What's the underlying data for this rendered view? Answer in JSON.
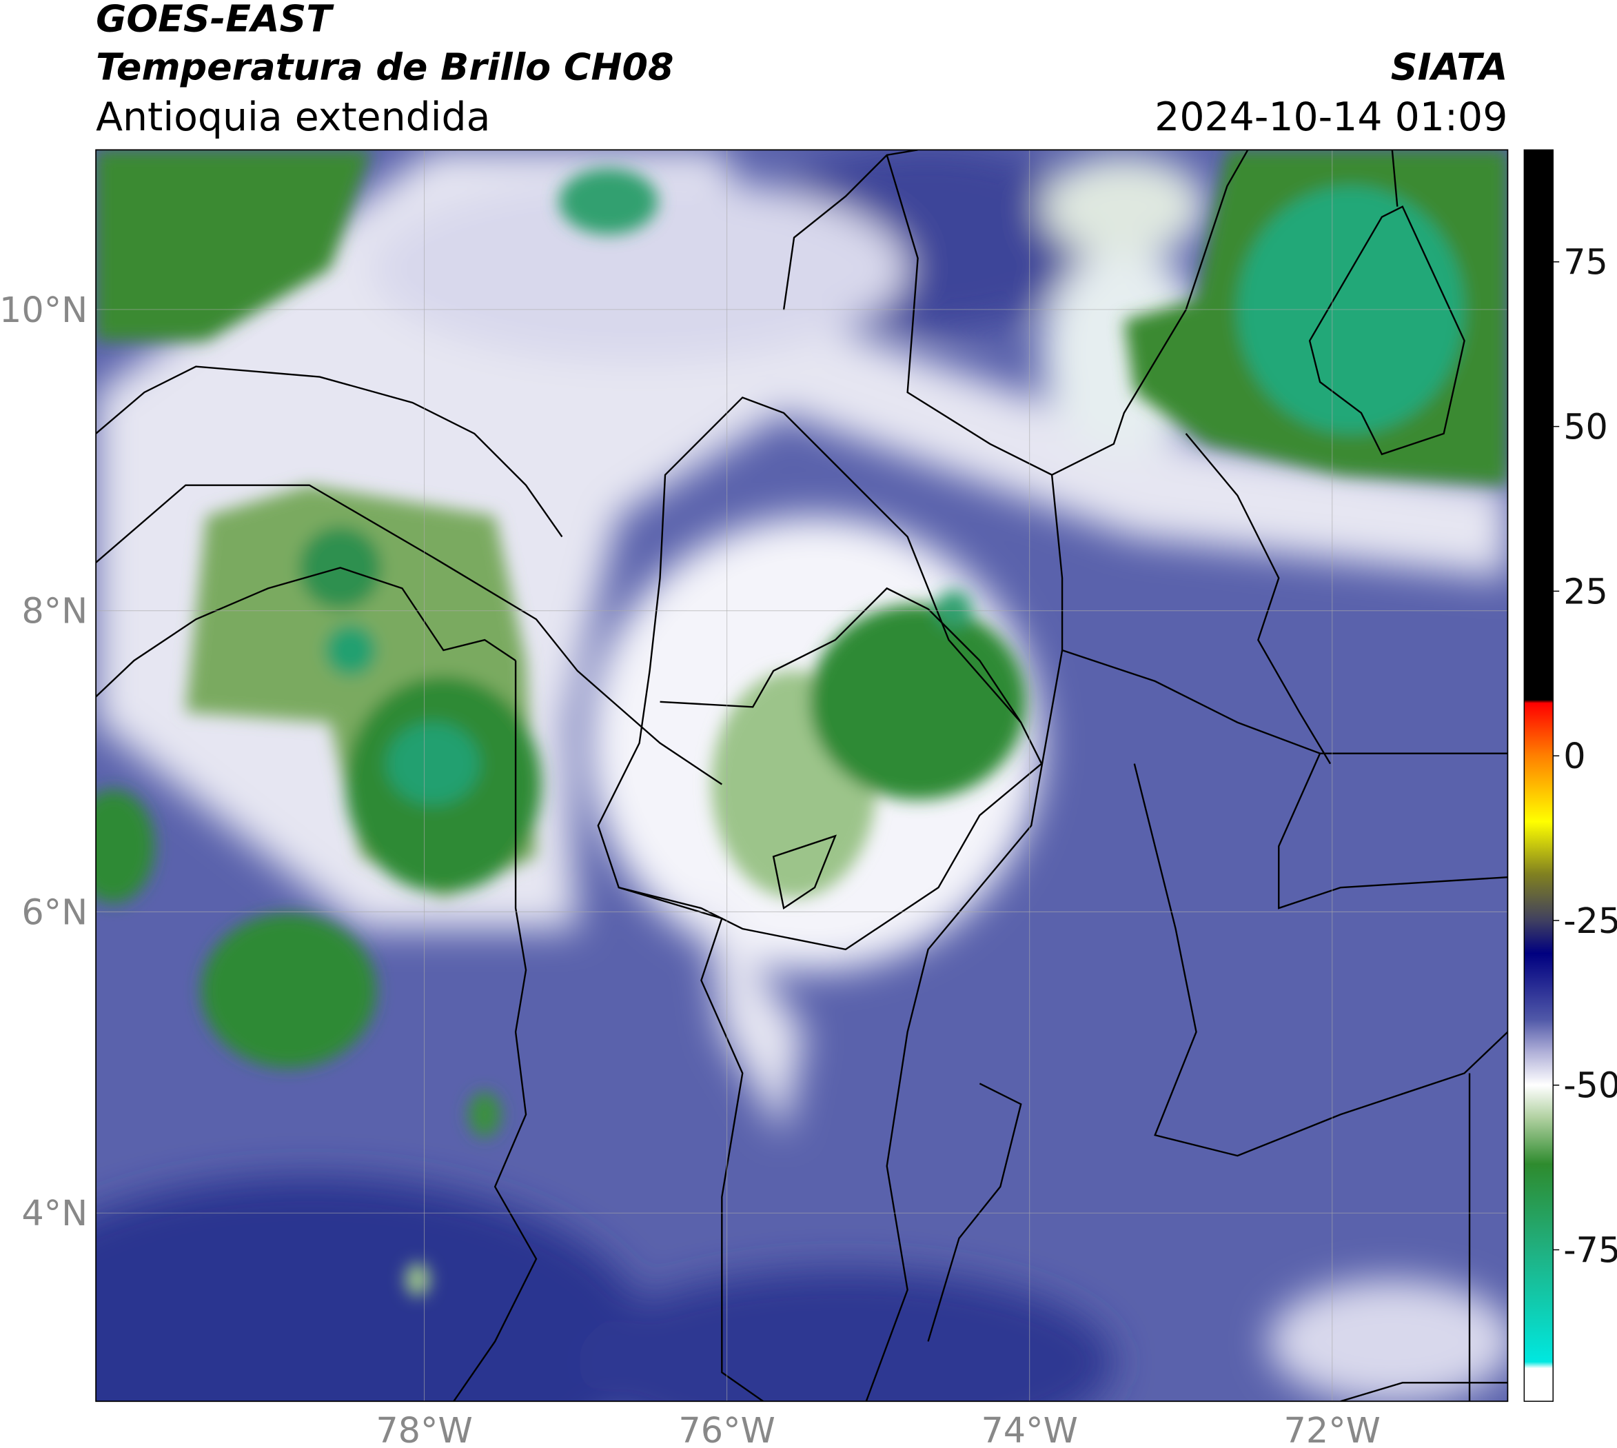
{
  "header": {
    "satellite": "GOES-EAST",
    "product": "Temperatura de Brillo CH08",
    "region": "Antioquia extendida",
    "source": "SIATA",
    "datetime": "2024-10-14 01:09"
  },
  "map": {
    "xlim": [
      -80.17,
      -70.84
    ],
    "ylim": [
      2.75,
      11.06
    ],
    "xticks": [
      {
        "value": -78,
        "label": "78°W"
      },
      {
        "value": -76,
        "label": "76°W"
      },
      {
        "value": -74,
        "label": "74°W"
      },
      {
        "value": -72,
        "label": "72°W"
      }
    ],
    "yticks": [
      {
        "value": 4,
        "label": "4°N"
      },
      {
        "value": 6,
        "label": "6°N"
      },
      {
        "value": 8,
        "label": "8°N"
      },
      {
        "value": 10,
        "label": "10°N"
      }
    ],
    "grid": true
  },
  "colorbar": {
    "lim": [
      -98,
      92
    ],
    "ticks": [
      75,
      50,
      25,
      0,
      -25,
      -50,
      -75
    ],
    "stops": [
      {
        "value": 92,
        "color": "#000000"
      },
      {
        "value": 8.5,
        "color": "#000000"
      },
      {
        "value": 8,
        "color": "#ff0000"
      },
      {
        "value": 0,
        "color": "#ff8000"
      },
      {
        "value": -10,
        "color": "#ffff00"
      },
      {
        "value": -18,
        "color": "#808020"
      },
      {
        "value": -25,
        "color": "#404060"
      },
      {
        "value": -30,
        "color": "#000080"
      },
      {
        "value": -40,
        "color": "#5058a8"
      },
      {
        "value": -45,
        "color": "#b0b0d8"
      },
      {
        "value": -50,
        "color": "#ffffff"
      },
      {
        "value": -55,
        "color": "#b0d0a0"
      },
      {
        "value": -62,
        "color": "#2e8b2e"
      },
      {
        "value": -75,
        "color": "#20b080"
      },
      {
        "value": -92,
        "color": "#00e8e0"
      },
      {
        "value": -93,
        "color": "#ffffff"
      },
      {
        "value": -98,
        "color": "#ffffff"
      }
    ]
  }
}
